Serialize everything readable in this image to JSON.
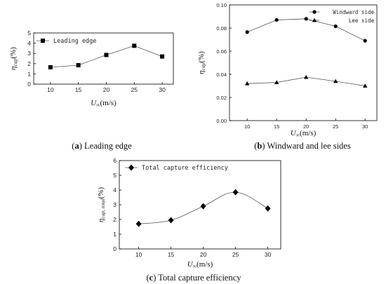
{
  "chart_data": [
    {
      "type": "line",
      "caption_id": "(a)",
      "caption_text": " Leading edge",
      "xlabel_sym": "U",
      "xlabel_sub": "∞",
      "xlabel_unit": "(m/s)",
      "ylabel_sym": "η",
      "ylabel_sub": "cap",
      "ylabel_unit": "(%)",
      "x": [
        10,
        15,
        20,
        25,
        30
      ],
      "xlim": [
        7,
        32
      ],
      "ylim": [
        0,
        5
      ],
      "yticks": [
        0,
        1,
        2,
        3,
        4,
        5
      ],
      "ytick_labels": [
        "0",
        "1",
        "2",
        "3",
        "4",
        "5"
      ],
      "grid": false,
      "legend_position": "top-left",
      "series": [
        {
          "name": "Leading edge",
          "marker": "square",
          "values": [
            1.65,
            1.85,
            2.85,
            3.75,
            2.7
          ]
        }
      ]
    },
    {
      "type": "line",
      "caption_id": "(b)",
      "caption_text": " Windward and lee sides",
      "xlabel_sym": "U",
      "xlabel_sub": "∞",
      "xlabel_unit": "(m/s)",
      "ylabel_sym": "η",
      "ylabel_sub": "cap",
      "ylabel_unit": "(%)",
      "x": [
        10,
        15,
        20,
        25,
        30
      ],
      "xlim": [
        7,
        32
      ],
      "ylim": [
        0,
        0.1
      ],
      "yticks": [
        0,
        0.02,
        0.04,
        0.06,
        0.08,
        0.1
      ],
      "ytick_labels": [
        "0.00",
        "0.02",
        "0.04",
        "0.06",
        "0.08",
        "0.10"
      ],
      "grid": false,
      "legend_position": "top-right",
      "series": [
        {
          "name": "Windward side",
          "marker": "circle",
          "values": [
            0.0765,
            0.087,
            0.088,
            0.0815,
            0.069
          ]
        },
        {
          "name": "Lee side",
          "marker": "triangle",
          "values": [
            0.032,
            0.033,
            0.0375,
            0.034,
            0.03
          ]
        }
      ]
    },
    {
      "type": "line",
      "caption_id": "(c)",
      "caption_text": " Total capture efficiency",
      "xlabel_sym": "U",
      "xlabel_sub": "∞",
      "xlabel_unit": "(m/s)",
      "ylabel_sym": "η",
      "ylabel_sub": "cap, total",
      "ylabel_unit": "(%)",
      "x": [
        10,
        15,
        20,
        25,
        30
      ],
      "xlim": [
        7,
        32
      ],
      "ylim": [
        0,
        6
      ],
      "yticks": [
        0,
        1,
        2,
        3,
        4,
        5,
        6
      ],
      "ytick_labels": [
        "0",
        "1",
        "2",
        "3",
        "4",
        "5",
        "6"
      ],
      "grid": false,
      "legend_position": "top-left",
      "series": [
        {
          "name": "Total capture efficiency",
          "marker": "diamond",
          "values": [
            1.7,
            1.95,
            2.9,
            3.85,
            2.75
          ]
        }
      ]
    }
  ]
}
